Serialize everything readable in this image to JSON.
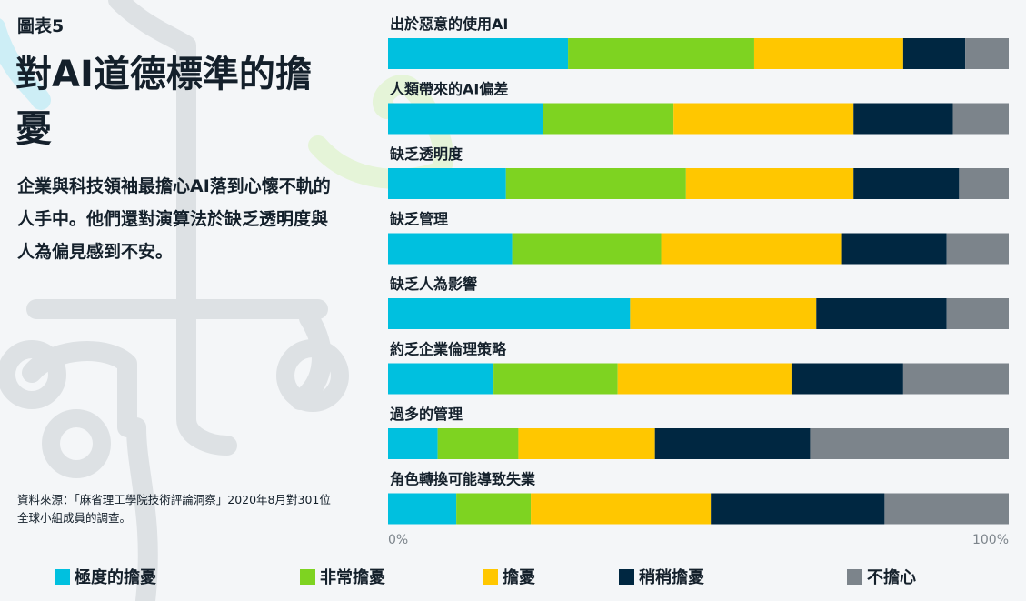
{
  "figure_label": "圖表5",
  "title": "對AI道德標準的擔憂",
  "subtitle": "企業與科技領袖最擔心AI落到心懷不軌的人手中。他們還對演算法於缺乏透明度與人為偏見感到不安。",
  "source": "資料來源：「麻省理工學院技術評論洞察」2020年8月對301位全球小組成員的調查。",
  "colors": {
    "極度的擔憂": "#00c0df",
    "非常擔憂": "#7ed321",
    "擔憂": "#ffc700",
    "稍稍擔憂": "#002741",
    "不擔心": "#7c848b",
    "background": "#f4f6f8",
    "bg_gray": "#dde1e4",
    "bg_blue": "#cdeef6",
    "bg_green": "#e5f4d8"
  },
  "chart_data": {
    "type": "bar",
    "orientation": "horizontal",
    "stacked": true,
    "normalized": true,
    "categories": [
      "出於惡意的使用AI",
      "人類帶來的AI偏差",
      "缺乏透明度",
      "缺乏管理",
      "缺乏人為影響",
      "約乏企業倫理策略",
      "過多的管理",
      "角色轉換可能導致失業"
    ],
    "series": [
      {
        "name": "極度的擔憂",
        "values": [
          29,
          25,
          19,
          20,
          39,
          17,
          8,
          11
        ]
      },
      {
        "name": "非常擔憂",
        "values": [
          30,
          21,
          29,
          24,
          0,
          20,
          13,
          12
        ]
      },
      {
        "name": "擔憂",
        "values": [
          24,
          29,
          27,
          29,
          30,
          28,
          22,
          29
        ]
      },
      {
        "name": "稍稍擔憂",
        "values": [
          10,
          16,
          17,
          17,
          21,
          18,
          25,
          28
        ]
      },
      {
        "name": "不擔心",
        "values": [
          7,
          9,
          8,
          10,
          10,
          17,
          32,
          20
        ]
      }
    ],
    "xlim": [
      0,
      100
    ],
    "x_tick_labels": [
      "0%",
      "100%"
    ],
    "legend_position": "bottom",
    "grid": false
  }
}
